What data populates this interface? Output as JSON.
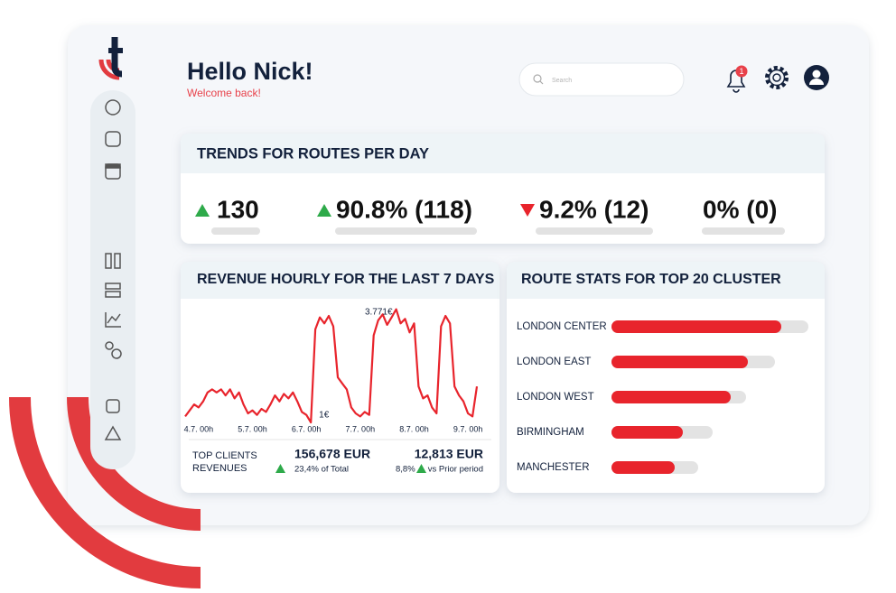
{
  "header": {
    "title": "Hello Nick!",
    "subtitle": "Welcome back!",
    "search_placeholder": "Search",
    "notifications": "1"
  },
  "trends": {
    "title": "TRENDS FOR ROUTES PER DAY",
    "items": [
      {
        "value": "130",
        "direction": "up"
      },
      {
        "value": "90.8% (118)",
        "direction": "up"
      },
      {
        "value": "9.2% (12)",
        "direction": "down"
      },
      {
        "value": "0% (0)"
      }
    ]
  },
  "chart_data": [
    {
      "type": "line",
      "title": "REVENUE HOURLY FOR THE LAST 7 DAYS",
      "color": "#e8242c",
      "x": [
        -6,
        -4,
        -2,
        0,
        2,
        4,
        6,
        8,
        10,
        12,
        14,
        16,
        18,
        20,
        22,
        24,
        26,
        28,
        30,
        32,
        34,
        36,
        38,
        40,
        42,
        44,
        46,
        48,
        50,
        52,
        54,
        56,
        58,
        60,
        62,
        64,
        66,
        68,
        70,
        72,
        74,
        76,
        78,
        80,
        82,
        84,
        86,
        88,
        90,
        92,
        94,
        96,
        98,
        100,
        102,
        104,
        106,
        108,
        110,
        112,
        114,
        116,
        118,
        120,
        122,
        124
      ],
      "values": [
        200,
        400,
        600,
        500,
        700,
        1000,
        1100,
        1000,
        1100,
        900,
        1100,
        800,
        1000,
        600,
        300,
        400,
        250,
        450,
        350,
        600,
        900,
        700,
        950,
        800,
        1000,
        700,
        350,
        250,
        1,
        3100,
        3500,
        3300,
        3550,
        3200,
        1500,
        1300,
        1100,
        500,
        300,
        200,
        350,
        250,
        2900,
        3400,
        3600,
        3250,
        3500,
        3771,
        3300,
        3450,
        3000,
        3300,
        1200,
        800,
        900,
        500,
        300,
        3200,
        3550,
        3300,
        1200,
        900,
        700,
        300,
        200,
        1200
      ],
      "xlim": [
        -6,
        126
      ],
      "ylim": [
        0,
        4000
      ],
      "xticks": [
        {
          "value": 0,
          "label": "4.7. 00h"
        },
        {
          "value": 24,
          "label": "5.7. 00h"
        },
        {
          "value": 48,
          "label": "6.7. 00h"
        },
        {
          "value": 72,
          "label": "7.7. 00h"
        },
        {
          "value": 96,
          "label": "8.7. 00h"
        },
        {
          "value": 120,
          "label": "9.7. 00h"
        }
      ],
      "annotations": [
        {
          "text": "3.771€",
          "x": 88,
          "y": 3771
        },
        {
          "text": "1€",
          "x": 50,
          "y": 1
        }
      ]
    },
    {
      "type": "bar",
      "title": "ROUTE STATS FOR TOP 20 CLUSTER",
      "categories": [
        "LONDON CENTER",
        "LONDON EAST",
        "LONDON WEST",
        "BIRMINGHAM",
        "MANCHESTER"
      ],
      "values": [
        188,
        151,
        132,
        79,
        70
      ],
      "totals": [
        218,
        181,
        149,
        112,
        96
      ],
      "xlim": [
        0,
        220
      ],
      "color": "#e8242c",
      "track_color": "#e3e3e3"
    }
  ],
  "footer": {
    "label": [
      "TOP CLIENTS",
      "REVENUES"
    ],
    "total": {
      "value": "156,678 EUR",
      "note": "23,4% of Total"
    },
    "prior": {
      "value": "12,813 EUR",
      "change": "8,8%",
      "note": "vs Prior period"
    }
  }
}
